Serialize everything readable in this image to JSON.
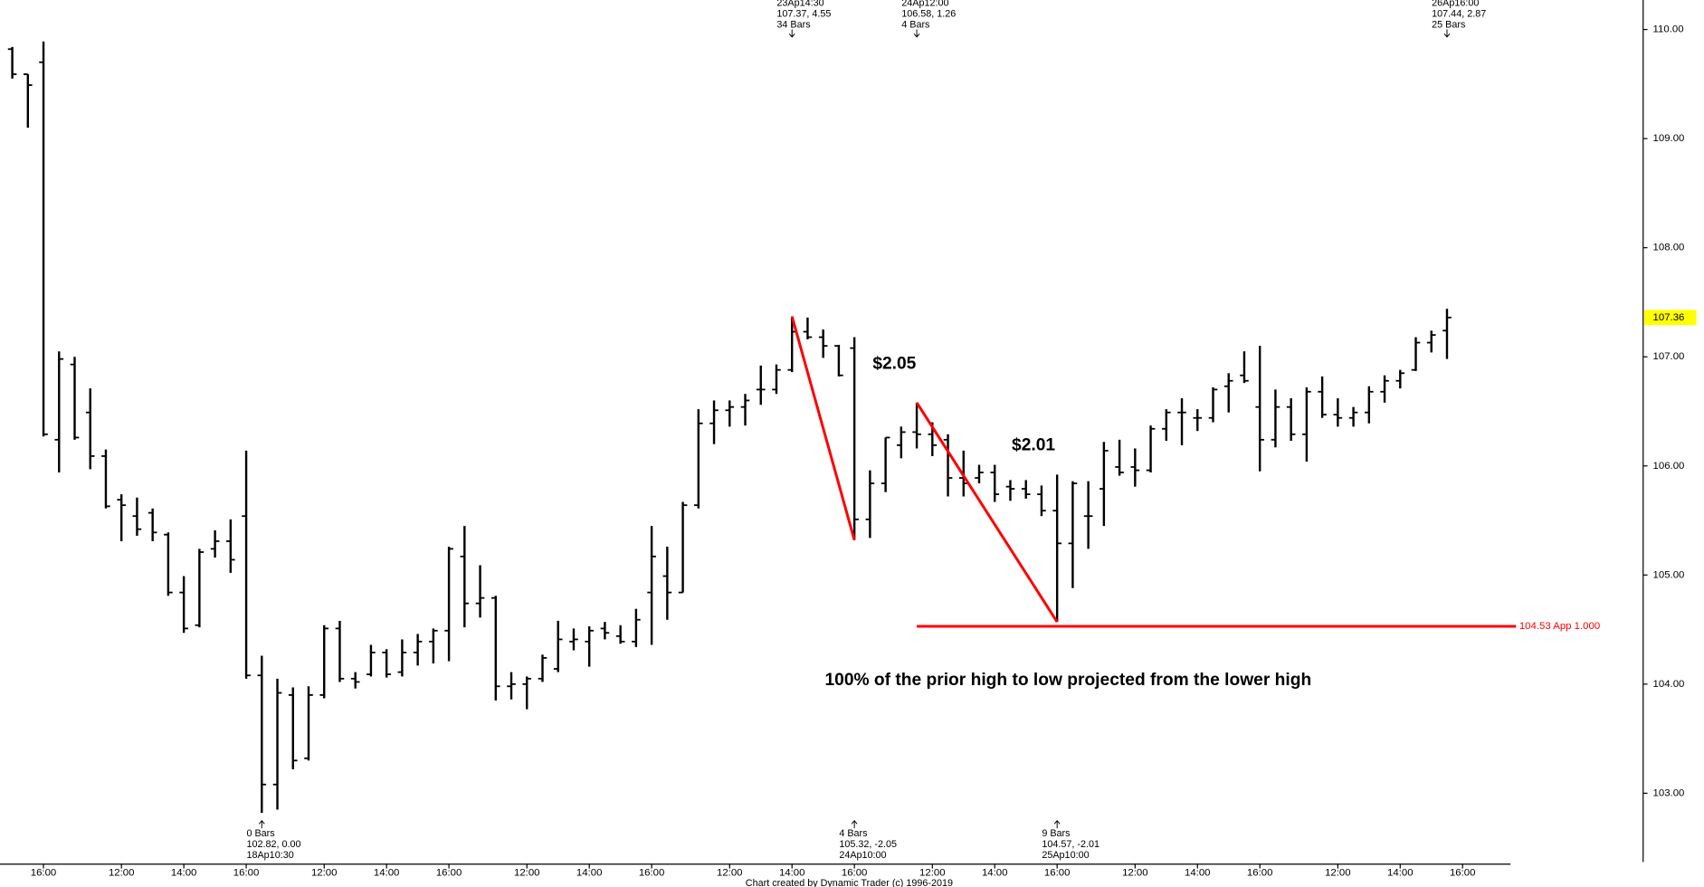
{
  "chart_data": {
    "type": "ohlc",
    "color": "#000000",
    "categories": [
      null,
      null,
      "16:00",
      null,
      null,
      null,
      null,
      "12:00",
      null,
      null,
      null,
      "14:00",
      null,
      null,
      null,
      "16:00",
      null,
      null,
      null,
      null,
      "12:00",
      null,
      null,
      null,
      "14:00",
      null,
      null,
      null,
      "16:00",
      null,
      null,
      null,
      null,
      "12:00",
      null,
      null,
      null,
      "14:00",
      null,
      null,
      null,
      "16:00",
      null,
      null,
      null,
      null,
      "12:00",
      null,
      null,
      null,
      "14:00",
      null,
      null,
      null,
      "16:00",
      null,
      null,
      null,
      null,
      "12:00",
      null,
      null,
      null,
      "14:00",
      null,
      null,
      null,
      "16:00",
      null,
      null,
      null,
      null,
      "12:00",
      null,
      null,
      null,
      "14:00",
      null,
      null,
      null,
      "16:00",
      null,
      null,
      null,
      null,
      "12:00",
      null,
      null,
      null,
      "14:00",
      null,
      null,
      null,
      "16:00"
    ],
    "open": [
      109.82,
      109.59,
      109.7,
      106.24,
      106.93,
      106.49,
      106.09,
      105.69,
      105.54,
      105.57,
      105.37,
      104.84,
      104.54,
      105.24,
      105.31,
      105.54,
      104.08,
      103.08,
      103.9,
      103.32,
      103.9,
      104.51,
      104.05,
      104.09,
      104.29,
      104.11,
      104.29,
      104.39,
      104.49,
      105.17,
      104.74,
      104.79,
      103.98,
      104.0,
      104.05,
      104.14,
      104.39,
      104.39,
      104.51,
      104.44,
      104.39,
      104.84,
      104.99,
      104.84,
      105.64,
      106.39,
      106.51,
      106.54,
      106.7,
      106.7,
      106.88,
      107.23,
      107.18,
      107.1,
      107.08,
      105.51,
      105.84,
      106.19,
      106.31,
      106.29,
      106.24,
      105.89,
      105.89,
      105.94,
      105.81,
      105.79,
      105.74,
      105.59,
      105.29,
      105.54,
      105.79,
      105.99,
      105.99,
      105.96,
      106.34,
      106.49,
      106.44,
      106.44,
      106.73,
      106.83,
      106.54,
      106.24,
      106.54,
      106.29,
      106.68,
      106.47,
      106.44,
      106.49,
      106.68,
      106.78,
      106.88,
      107.13,
      107.24,
      null
    ],
    "high": [
      109.84,
      109.59,
      109.89,
      107.05,
      107.0,
      106.71,
      106.15,
      105.74,
      105.71,
      105.61,
      105.39,
      104.99,
      105.24,
      105.41,
      105.51,
      106.14,
      104.26,
      104.05,
      103.97,
      103.98,
      104.54,
      104.58,
      104.11,
      104.36,
      104.32,
      104.41,
      104.46,
      104.51,
      105.26,
      105.45,
      105.09,
      104.81,
      104.11,
      104.07,
      104.27,
      104.58,
      104.51,
      104.53,
      104.57,
      104.54,
      104.69,
      105.45,
      105.26,
      105.67,
      106.52,
      106.6,
      106.6,
      106.66,
      106.92,
      106.93,
      107.37,
      107.36,
      107.25,
      107.11,
      107.18,
      105.96,
      106.26,
      106.36,
      106.58,
      106.4,
      106.29,
      106.14,
      106.01,
      106.01,
      105.87,
      105.87,
      105.82,
      105.92,
      105.86,
      105.86,
      106.22,
      106.24,
      106.16,
      106.37,
      106.52,
      106.62,
      106.52,
      106.72,
      106.85,
      107.05,
      107.1,
      106.7,
      106.62,
      106.72,
      106.82,
      106.62,
      106.54,
      106.73,
      106.83,
      106.88,
      107.18,
      107.24,
      107.44,
      null
    ],
    "low": [
      109.55,
      109.1,
      106.27,
      105.94,
      106.24,
      105.97,
      105.61,
      105.31,
      105.36,
      105.31,
      104.81,
      104.47,
      104.52,
      105.16,
      105.02,
      104.05,
      102.82,
      102.85,
      103.22,
      103.3,
      103.87,
      104.02,
      103.96,
      104.07,
      104.06,
      104.07,
      104.17,
      104.19,
      104.21,
      104.52,
      104.61,
      103.85,
      103.86,
      103.77,
      104.02,
      104.11,
      104.31,
      104.16,
      104.41,
      104.37,
      104.34,
      104.36,
      104.59,
      104.84,
      105.61,
      106.2,
      106.36,
      106.37,
      106.56,
      106.66,
      106.86,
      107.16,
      106.99,
      106.82,
      105.32,
      105.34,
      105.76,
      106.07,
      106.16,
      106.09,
      105.72,
      105.72,
      105.84,
      105.67,
      105.68,
      105.7,
      105.54,
      104.57,
      104.88,
      105.24,
      105.45,
      105.91,
      105.81,
      105.94,
      106.23,
      106.19,
      106.32,
      106.4,
      106.49,
      106.76,
      105.95,
      106.17,
      106.23,
      106.04,
      106.44,
      106.36,
      106.36,
      106.39,
      106.58,
      106.71,
      106.87,
      107.04,
      106.98,
      null
    ],
    "close": [
      109.59,
      109.49,
      106.29,
      106.98,
      106.26,
      106.09,
      105.63,
      105.64,
      105.42,
      105.39,
      104.84,
      104.51,
      105.21,
      105.31,
      105.14,
      104.08,
      103.08,
      103.92,
      103.3,
      103.9,
      104.51,
      104.05,
      104.02,
      104.29,
      104.09,
      104.29,
      104.39,
      104.49,
      105.24,
      104.74,
      104.79,
      103.98,
      104.0,
      104.05,
      104.24,
      104.41,
      104.41,
      104.49,
      104.47,
      104.39,
      104.59,
      105.17,
      104.84,
      105.64,
      106.39,
      106.51,
      106.54,
      106.6,
      106.7,
      106.88,
      107.23,
      107.18,
      107.1,
      106.83,
      105.51,
      105.84,
      106.26,
      106.31,
      106.29,
      106.19,
      105.89,
      105.84,
      105.94,
      105.74,
      105.79,
      105.74,
      105.59,
      105.29,
      105.84,
      105.54,
      106.14,
      105.94,
      105.96,
      106.34,
      106.49,
      106.49,
      106.44,
      106.7,
      106.78,
      106.78,
      106.24,
      106.54,
      106.29,
      106.68,
      106.47,
      106.44,
      106.49,
      106.68,
      106.78,
      106.85,
      107.13,
      107.2,
      107.36,
      null
    ],
    "ylim": [
      102.37,
      110.27
    ],
    "yticks": [
      {
        "value": 103,
        "label": "103.00"
      },
      {
        "value": 104,
        "label": "104.00"
      },
      {
        "value": 105,
        "label": "105.00"
      },
      {
        "value": 106,
        "label": "106.00"
      },
      {
        "value": 107,
        "label": "107.00"
      },
      {
        "value": 108,
        "label": "108.00"
      },
      {
        "value": 109,
        "label": "109.00"
      },
      {
        "value": 110,
        "label": "110.00"
      }
    ],
    "y_axis_side": "right",
    "grid": false,
    "last_price": {
      "value": 107.36,
      "label": "107.36",
      "color": "#ffff00"
    },
    "projection": {
      "value": 104.53,
      "label": "104.53 App 1.000",
      "color": "#ff0000"
    },
    "swing_color": "#ff0000",
    "annotations_top": [
      {
        "lines": [
          "23Ap14:30",
          "107.37, 4.55",
          "34 Bars"
        ]
      },
      {
        "lines": [
          "24Ap12:00",
          "106.58, 1.26",
          "4 Bars"
        ]
      },
      {
        "lines": [
          "26Ap16:00",
          "107.44, 2.87",
          "25 Bars"
        ]
      }
    ],
    "annotations_bottom": [
      {
        "lines": [
          "0 Bars",
          "102.82, 0.00",
          "18Ap10:30"
        ]
      },
      {
        "lines": [
          "4 Bars",
          "105.32, -2.05",
          "24Ap10:00"
        ]
      },
      {
        "lines": [
          "9 Bars",
          "104.57, -2.01",
          "25Ap10:00"
        ]
      }
    ],
    "texts": [
      "$2.05",
      "$2.01",
      "100% of the prior high to low projected from the lower high"
    ],
    "footer": "Chart created by Dynamic Trader  (c) 1996-2019"
  }
}
